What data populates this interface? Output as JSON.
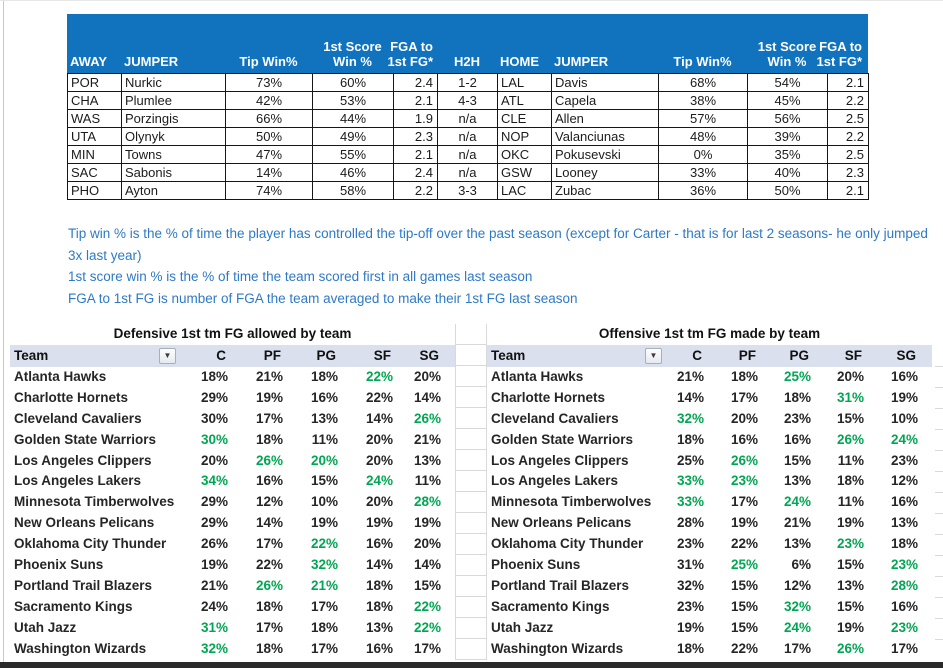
{
  "colors": {
    "header_blue": "#1172BD",
    "notes_blue": "#2E79C7",
    "band_fill": "#DAE0EE",
    "green_stat": "#00A651"
  },
  "matchup_table": {
    "headers": [
      "AWAY",
      "JUMPER",
      "Tip Win%",
      "1st Score\nWin %",
      "FGA to\n1st FG*",
      "H2H",
      "HOME",
      "JUMPER",
      "Tip Win%",
      "1st Score\nWin %",
      "FGA to\n1st FG*"
    ],
    "rows": [
      [
        "POR",
        "Nurkic",
        "73%",
        "60%",
        "2.4",
        "1-2",
        "LAL",
        "Davis",
        "68%",
        "54%",
        "2.1"
      ],
      [
        "CHA",
        "Plumlee",
        "42%",
        "53%",
        "2.1",
        "4-3",
        "ATL",
        "Capela",
        "38%",
        "45%",
        "2.2"
      ],
      [
        "WAS",
        "Porzingis",
        "66%",
        "44%",
        "1.9",
        "n/a",
        "CLE",
        "Allen",
        "57%",
        "56%",
        "2.5"
      ],
      [
        "UTA",
        "Olynyk",
        "50%",
        "49%",
        "2.3",
        "n/a",
        "NOP",
        "Valanciunas",
        "48%",
        "39%",
        "2.2"
      ],
      [
        "MIN",
        "Towns",
        "47%",
        "55%",
        "2.1",
        "n/a",
        "OKC",
        "Pokusevski",
        "0%",
        "35%",
        "2.5"
      ],
      [
        "SAC",
        "Sabonis",
        "14%",
        "46%",
        "2.4",
        "n/a",
        "GSW",
        "Looney",
        "33%",
        "40%",
        "2.3"
      ],
      [
        "PHO",
        "Ayton",
        "74%",
        "58%",
        "2.2",
        "3-3",
        "LAC",
        "Zubac",
        "36%",
        "50%",
        "2.1"
      ]
    ]
  },
  "notes": {
    "items": [
      "Tip win % is the % of time the player has controlled the tip-off over the past season (except for Carter - that is for last 2 seasons- he only jumped 3x last year)",
      "1st score win % is the % of time the team scored first in all games last season",
      "FGA to 1st FG is number of FGA the team averaged to make their 1st FG last season"
    ]
  },
  "defensive_table": {
    "title": "Defensive 1st tm FG allowed by team",
    "columns": [
      "Team",
      "C",
      "PF",
      "PG",
      "SF",
      "SG"
    ],
    "filter_icon": "chevron-down-icon",
    "rows": [
      {
        "team": "Atlanta Hawks",
        "values": [
          "18%",
          "21%",
          "18%",
          "22%",
          "20%"
        ],
        "green_cols": [
          3
        ]
      },
      {
        "team": "Charlotte Hornets",
        "values": [
          "29%",
          "19%",
          "16%",
          "22%",
          "14%"
        ],
        "green_cols": []
      },
      {
        "team": "Cleveland Cavaliers",
        "values": [
          "30%",
          "17%",
          "13%",
          "14%",
          "26%"
        ],
        "green_cols": [
          4
        ]
      },
      {
        "team": "Golden State Warriors",
        "values": [
          "30%",
          "18%",
          "11%",
          "20%",
          "21%"
        ],
        "green_cols": [
          0
        ]
      },
      {
        "team": "Los Angeles Clippers",
        "values": [
          "20%",
          "26%",
          "20%",
          "20%",
          "13%"
        ],
        "green_cols": [
          1,
          2
        ]
      },
      {
        "team": "Los Angeles Lakers",
        "values": [
          "34%",
          "16%",
          "15%",
          "24%",
          "11%"
        ],
        "green_cols": [
          0,
          3
        ]
      },
      {
        "team": "Minnesota Timberwolves",
        "values": [
          "29%",
          "12%",
          "10%",
          "20%",
          "28%"
        ],
        "green_cols": [
          4
        ]
      },
      {
        "team": "New Orleans Pelicans",
        "values": [
          "29%",
          "14%",
          "19%",
          "19%",
          "19%"
        ],
        "green_cols": []
      },
      {
        "team": "Oklahoma City Thunder",
        "values": [
          "26%",
          "17%",
          "22%",
          "16%",
          "20%"
        ],
        "green_cols": [
          2
        ]
      },
      {
        "team": "Phoenix Suns",
        "values": [
          "19%",
          "22%",
          "32%",
          "14%",
          "14%"
        ],
        "green_cols": [
          2
        ]
      },
      {
        "team": "Portland Trail Blazers",
        "values": [
          "21%",
          "26%",
          "21%",
          "18%",
          "15%"
        ],
        "green_cols": [
          1,
          2
        ]
      },
      {
        "team": "Sacramento Kings",
        "values": [
          "24%",
          "18%",
          "17%",
          "18%",
          "22%"
        ],
        "green_cols": [
          4
        ]
      },
      {
        "team": "Utah Jazz",
        "values": [
          "31%",
          "17%",
          "18%",
          "13%",
          "22%"
        ],
        "green_cols": [
          0,
          4
        ]
      },
      {
        "team": "Washington Wizards",
        "values": [
          "32%",
          "18%",
          "17%",
          "16%",
          "17%"
        ],
        "green_cols": [
          0
        ]
      }
    ]
  },
  "offensive_table": {
    "title": "Offensive 1st tm FG made by team",
    "columns": [
      "Team",
      "C",
      "PF",
      "PG",
      "SF",
      "SG"
    ],
    "filter_icon": "chevron-down-icon",
    "rows": [
      {
        "team": "Atlanta Hawks",
        "values": [
          "21%",
          "18%",
          "25%",
          "20%",
          "16%"
        ],
        "green_cols": [
          2
        ]
      },
      {
        "team": "Charlotte Hornets",
        "values": [
          "14%",
          "17%",
          "18%",
          "31%",
          "19%"
        ],
        "green_cols": [
          3
        ]
      },
      {
        "team": "Cleveland Cavaliers",
        "values": [
          "32%",
          "20%",
          "23%",
          "15%",
          "10%"
        ],
        "green_cols": [
          0
        ]
      },
      {
        "team": "Golden State Warriors",
        "values": [
          "18%",
          "16%",
          "16%",
          "26%",
          "24%"
        ],
        "green_cols": [
          3,
          4
        ]
      },
      {
        "team": "Los Angeles Clippers",
        "values": [
          "25%",
          "26%",
          "15%",
          "11%",
          "23%"
        ],
        "green_cols": [
          1
        ]
      },
      {
        "team": "Los Angeles Lakers",
        "values": [
          "33%",
          "23%",
          "13%",
          "18%",
          "12%"
        ],
        "green_cols": [
          0,
          1
        ]
      },
      {
        "team": "Minnesota Timberwolves",
        "values": [
          "33%",
          "17%",
          "24%",
          "11%",
          "16%"
        ],
        "green_cols": [
          0,
          2
        ]
      },
      {
        "team": "New Orleans Pelicans",
        "values": [
          "28%",
          "19%",
          "21%",
          "19%",
          "13%"
        ],
        "green_cols": []
      },
      {
        "team": "Oklahoma City Thunder",
        "values": [
          "23%",
          "22%",
          "13%",
          "23%",
          "18%"
        ],
        "green_cols": [
          3
        ]
      },
      {
        "team": "Phoenix Suns",
        "values": [
          "31%",
          "25%",
          "6%",
          "15%",
          "23%"
        ],
        "green_cols": [
          1,
          4
        ]
      },
      {
        "team": "Portland Trail Blazers",
        "values": [
          "32%",
          "15%",
          "12%",
          "13%",
          "28%"
        ],
        "green_cols": [
          4
        ]
      },
      {
        "team": "Sacramento Kings",
        "values": [
          "23%",
          "15%",
          "32%",
          "15%",
          "16%"
        ],
        "green_cols": [
          2
        ]
      },
      {
        "team": "Utah Jazz",
        "values": [
          "19%",
          "15%",
          "24%",
          "19%",
          "23%"
        ],
        "green_cols": [
          2,
          4
        ]
      },
      {
        "team": "Washington Wizards",
        "values": [
          "18%",
          "22%",
          "17%",
          "26%",
          "17%"
        ],
        "green_cols": [
          3
        ]
      }
    ]
  }
}
